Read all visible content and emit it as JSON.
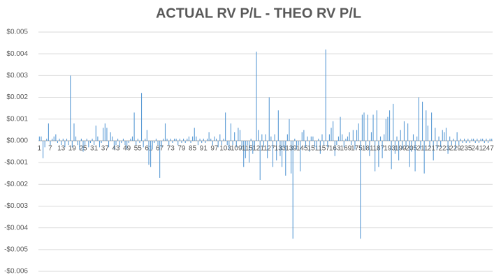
{
  "chart_data": {
    "type": "bar",
    "title": "ACTUAL RV P/L - THEO RV P/L",
    "categories": [
      1,
      null,
      null,
      null,
      null,
      null,
      7,
      null,
      null,
      null,
      null,
      null,
      13,
      null,
      null,
      null,
      null,
      null,
      19,
      null,
      null,
      null,
      null,
      null,
      25,
      null,
      null,
      null,
      null,
      null,
      31,
      null,
      null,
      null,
      null,
      null,
      37,
      null,
      null,
      null,
      null,
      null,
      43,
      null,
      null,
      null,
      null,
      null,
      49,
      null,
      null,
      null,
      null,
      null,
      55,
      null,
      null,
      null,
      null,
      null,
      61,
      null,
      null,
      null,
      null,
      null,
      67,
      null,
      null,
      null,
      null,
      null,
      73,
      null,
      null,
      null,
      null,
      null,
      79,
      null,
      null,
      null,
      null,
      null,
      85,
      null,
      null,
      null,
      null,
      null,
      91,
      null,
      null,
      null,
      null,
      null,
      97,
      null,
      null,
      null,
      null,
      null,
      103,
      null,
      null,
      null,
      null,
      null,
      109,
      null,
      null,
      null,
      null,
      null,
      115,
      null,
      null,
      null,
      null,
      null,
      121,
      null,
      null,
      null,
      null,
      null,
      127,
      null,
      null,
      null,
      null,
      null,
      133,
      null,
      null,
      null,
      null,
      null,
      139,
      null,
      null,
      null,
      null,
      null,
      145,
      null,
      null,
      null,
      null,
      null,
      151,
      null,
      null,
      null,
      null,
      null,
      157,
      null,
      null,
      null,
      null,
      null,
      163,
      null,
      null,
      null,
      null,
      null,
      169,
      null,
      null,
      null,
      null,
      null,
      175,
      null,
      null,
      null,
      null,
      null,
      181,
      null,
      null,
      null,
      null,
      null,
      187,
      null,
      null,
      null,
      null,
      null,
      193,
      null,
      null,
      null,
      null,
      null,
      199,
      null,
      null,
      null,
      null,
      null,
      205,
      null,
      null,
      null,
      null,
      null,
      211,
      null,
      null,
      null,
      null,
      null,
      217,
      null,
      null,
      null,
      null,
      null,
      223,
      null,
      null,
      null,
      null,
      null,
      229,
      null,
      null,
      null,
      null,
      null,
      235,
      null,
      null,
      null,
      null,
      null,
      241,
      null,
      null,
      null,
      null,
      null,
      247,
      null,
      null
    ],
    "values": [
      0.0002,
      0.0002,
      -0.0008,
      -0.0003,
      0.0001,
      0.0008,
      -0.0002,
      0.0001,
      0.0002,
      0.0003,
      -0.0001,
      0.0001,
      -0.0002,
      0.0001,
      -0.0003,
      0.0001,
      -0.0002,
      0.003,
      -0.0003,
      0.0008,
      0.0002,
      -0.0002,
      -0.0004,
      0.0001,
      -0.0005,
      -0.0002,
      0.0001,
      -0.0003,
      -0.0001,
      0.0001,
      -0.0002,
      0.0007,
      0.0002,
      -0.0003,
      -0.0001,
      0.0006,
      0.0008,
      0.0006,
      -0.0003,
      0.0004,
      0.0002,
      -0.0004,
      -0.0002,
      0.0001,
      -0.0003,
      -0.0001,
      0.0001,
      -0.0002,
      -0.0004,
      -0.0001,
      0.0001,
      0.0002,
      0.0013,
      -0.0002,
      0.0001,
      -0.0001,
      0.0022,
      -0.0003,
      0.0001,
      0.0005,
      -0.0011,
      -0.0012,
      -0.0004,
      -0.0001,
      0.0001,
      -0.0002,
      -0.0017,
      -0.0003,
      0.0001,
      0.0008,
      0.0001,
      -0.0002,
      0.0001,
      -0.0001,
      0.0001,
      0.0001,
      -0.0002,
      0.0001,
      -0.0001,
      0.0001,
      -0.0001,
      0.0001,
      0.0002,
      -0.0001,
      0.0002,
      0.0006,
      0.0002,
      -0.0002,
      0.0001,
      -0.0001,
      0.0001,
      -0.0001,
      0.0001,
      0.0004,
      0.0001,
      -0.0002,
      0.0002,
      0.0001,
      -0.0003,
      0.0003,
      -0.0002,
      0.0001,
      0.0013,
      -0.0002,
      -0.0004,
      0.0008,
      -0.0002,
      0.0004,
      -0.0003,
      0.0006,
      0.0005,
      -0.0004,
      -0.0012,
      -0.0008,
      -0.0002,
      -0.001,
      0.0001,
      -0.0006,
      -0.0004,
      0.0041,
      0.0005,
      -0.0018,
      0.0003,
      -0.0003,
      0.0003,
      -0.0008,
      0.002,
      0.0002,
      -0.0012,
      0.0003,
      -0.0009,
      0.0014,
      -0.0007,
      -0.0012,
      -0.0003,
      -0.0016,
      0.0003,
      0.001,
      -0.0015,
      -0.0045,
      0.0001,
      -0.0004,
      -0.0002,
      -0.0014,
      0.0004,
      0.0005,
      -0.0003,
      0.0002,
      -0.0005,
      0.0002,
      0.0002,
      -0.0003,
      -0.0004,
      0.0001,
      -0.0006,
      0.0003,
      -0.0002,
      0.0042,
      -0.0003,
      0.0003,
      0.0006,
      0.0009,
      -0.0007,
      -0.0002,
      0.0002,
      0.0011,
      0.0003,
      -0.0003,
      0.0001,
      0.0002,
      0.0004,
      -0.0002,
      0.0005,
      -0.0004,
      0.0005,
      0.0008,
      -0.0045,
      0.0012,
      0.0013,
      -0.0004,
      0.0012,
      -0.0007,
      0.0004,
      0.0012,
      -0.0014,
      0.0014,
      -0.0012,
      0.0002,
      -0.0008,
      0.0003,
      0.001,
      0.0011,
      0.0014,
      -0.0013,
      0.0017,
      -0.0006,
      0.0002,
      -0.0009,
      0.0005,
      -0.0004,
      0.0009,
      -0.0003,
      0.0008,
      -0.0012,
      -0.0005,
      0.0003,
      -0.0014,
      0.0002,
      0.002,
      -0.0004,
      0.0018,
      -0.0015,
      0.0014,
      0.0007,
      -0.0003,
      0.0013,
      -0.0009,
      0.0006,
      -0.0004,
      0.0002,
      -0.0003,
      0.0005,
      0.0004,
      0.0006,
      -0.0006,
      0.0002,
      -0.0002,
      0.0001,
      -0.0004,
      0.0004,
      -0.0002,
      0.0001,
      -0.0001,
      0.0001,
      -0.0001,
      0.0001,
      -0.0001,
      0.0001,
      0.0001,
      -0.0001,
      0.0001,
      -0.0001,
      0.0001,
      0.0001,
      -0.0001,
      0.0001,
      -0.0001,
      0.0001,
      0.0001
    ],
    "color": "#5b9bd5",
    "ylim": [
      -0.006,
      0.005
    ],
    "yticks": [
      {
        "value": -0.006,
        "label": "-$0.006"
      },
      {
        "value": -0.005,
        "label": "-$0.005"
      },
      {
        "value": -0.004,
        "label": "-$0.004"
      },
      {
        "value": -0.003,
        "label": "-$0.003"
      },
      {
        "value": -0.002,
        "label": "-$0.002"
      },
      {
        "value": -0.001,
        "label": "-$0.001"
      },
      {
        "value": 0,
        "label": "$0.000"
      },
      {
        "value": 0.001,
        "label": "$0.001"
      },
      {
        "value": 0.002,
        "label": "$0.002"
      },
      {
        "value": 0.003,
        "label": "$0.003"
      },
      {
        "value": 0.004,
        "label": "$0.004"
      },
      {
        "value": 0.005,
        "label": "$0.005"
      }
    ],
    "grid": true
  }
}
